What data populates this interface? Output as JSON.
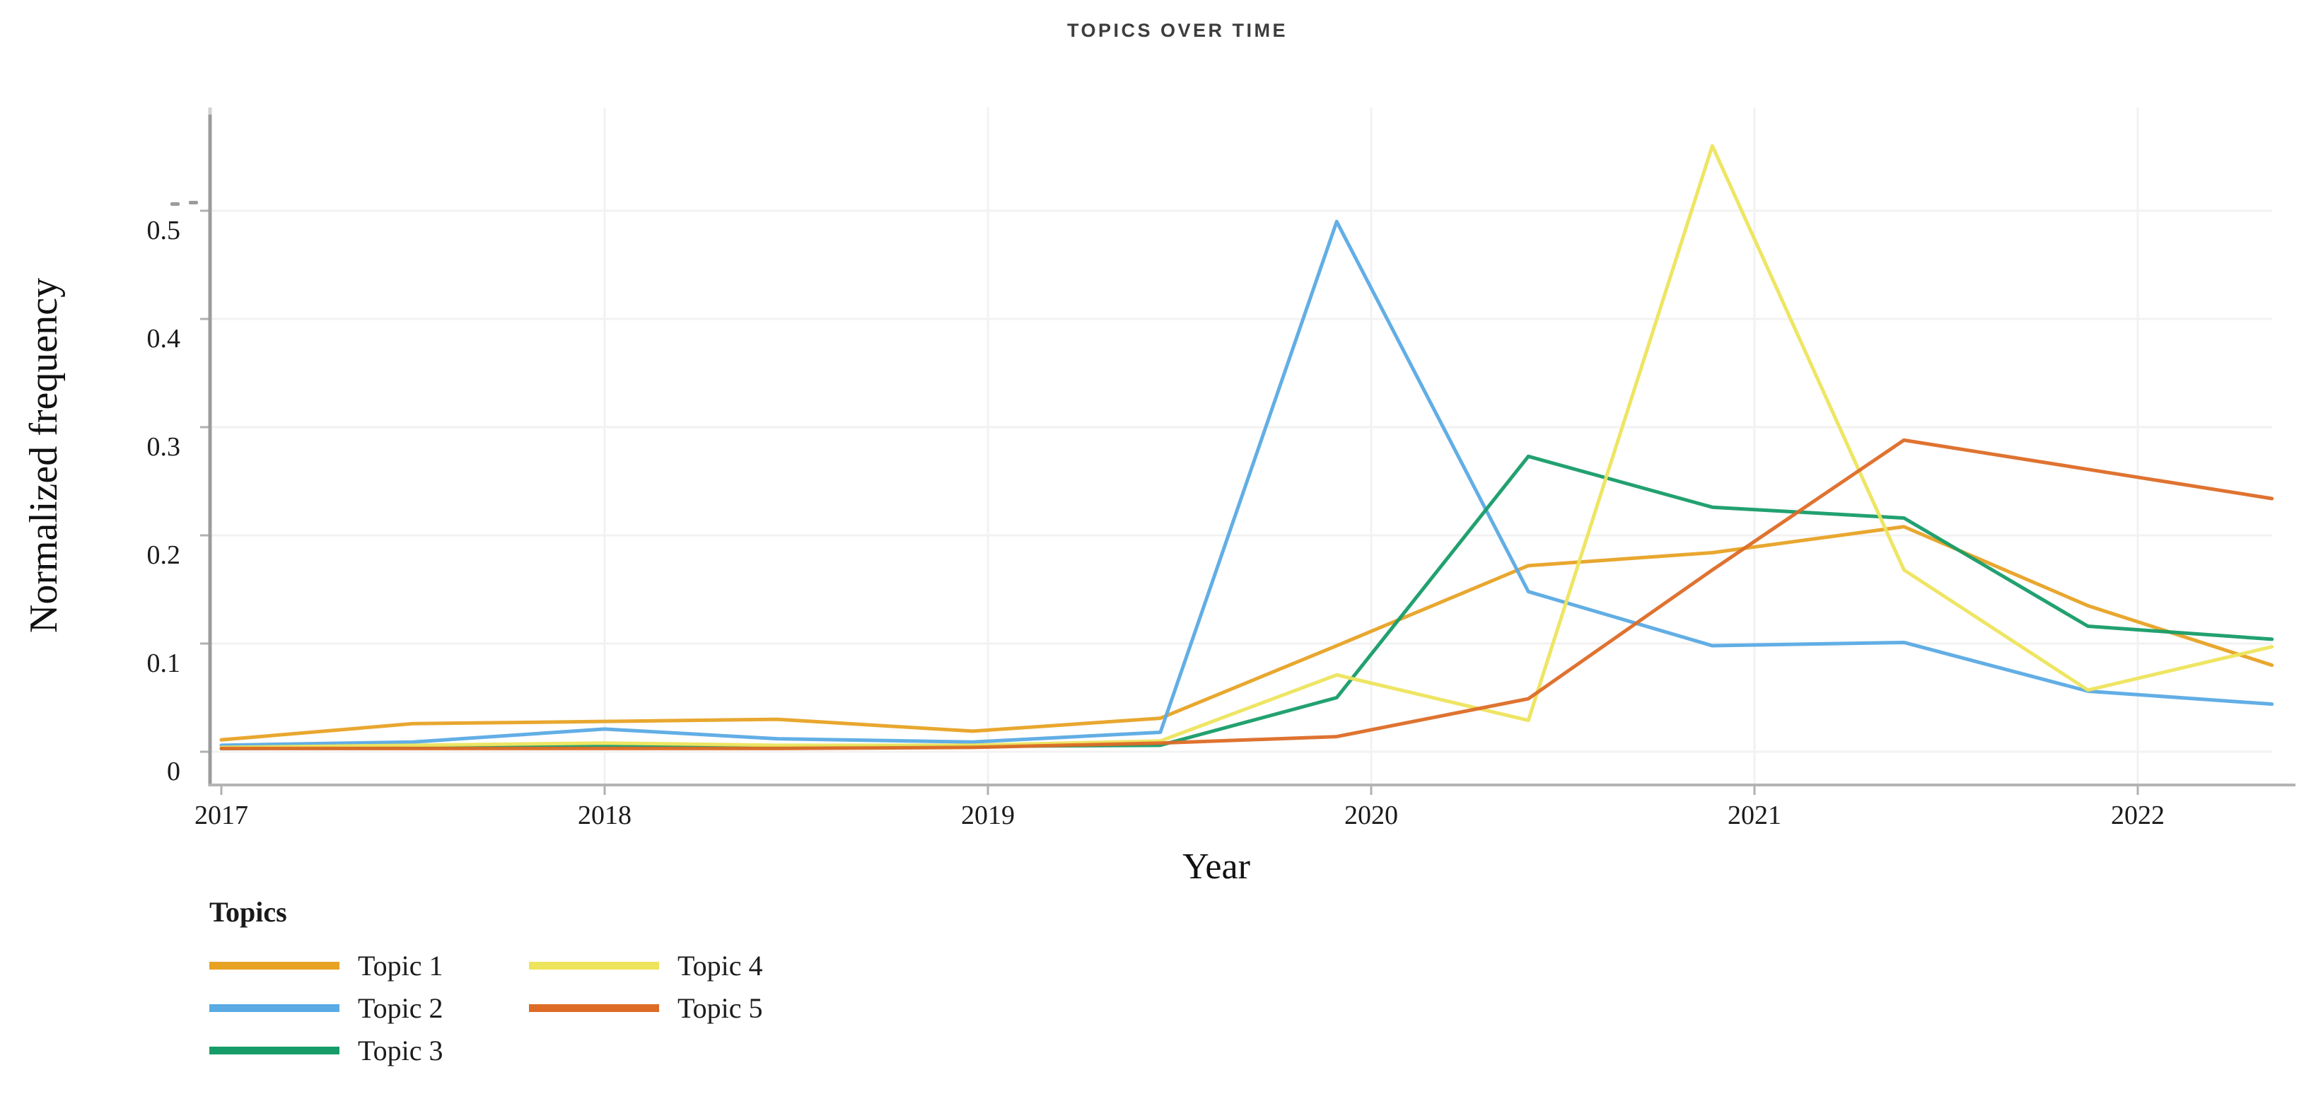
{
  "title": {
    "text": "TOPICS OVER TIME"
  },
  "y_axis": {
    "label": "Normalized frequency",
    "tick_labels": [
      "0",
      "0.1",
      "0.2",
      "0.3",
      "0.4",
      "0.5"
    ]
  },
  "x_axis": {
    "label": "Year",
    "tick_labels": [
      "2017",
      "2018",
      "2019",
      "2020",
      "2021",
      "2022"
    ]
  },
  "legend": {
    "title": "Topics",
    "items": [
      {
        "label": "Topic 1",
        "color": "#E7A224"
      },
      {
        "label": "Topic 4",
        "color": "#EDE45C"
      },
      {
        "label": "Topic 2",
        "color": "#5AAAE4"
      },
      {
        "label": "Topic 5",
        "color": "#DD6B26"
      },
      {
        "label": "Topic 3",
        "color": "#169C68"
      }
    ]
  },
  "colors": {
    "axis_line": "#9c9c9c",
    "baseline": "#b4b4b4",
    "gridline": "#f2f2f2",
    "tick_mark": "#b0b0b0",
    "title_text": "#3d3d3d"
  },
  "chart_data": {
    "type": "line",
    "title": "TOPICS OVER TIME",
    "xlabel": "Year",
    "ylabel": "Normalized frequency",
    "x": [
      2017.0,
      2017.5,
      2018.0,
      2018.45,
      2018.96,
      2019.45,
      2019.91,
      2020.41,
      2020.89,
      2021.39,
      2021.87,
      2022.35
    ],
    "series": [
      {
        "name": "Topic 1",
        "color": "#E7A224",
        "values": [
          0.011,
          0.026,
          0.028,
          0.03,
          0.019,
          0.031,
          0.098,
          0.172,
          0.184,
          0.208,
          0.135,
          0.08
        ]
      },
      {
        "name": "Topic 2",
        "color": "#5AAAE4",
        "values": [
          0.006,
          0.009,
          0.021,
          0.012,
          0.009,
          0.018,
          0.49,
          0.148,
          0.098,
          0.101,
          0.056,
          0.044
        ]
      },
      {
        "name": "Topic 3",
        "color": "#169C68",
        "values": [
          0.003,
          0.004,
          0.005,
          0.004,
          0.005,
          0.006,
          0.05,
          0.273,
          0.226,
          0.216,
          0.116,
          0.104
        ]
      },
      {
        "name": "Topic 4",
        "color": "#EDE45C",
        "values": [
          0.004,
          0.006,
          0.008,
          0.006,
          0.006,
          0.01,
          0.071,
          0.029,
          0.56,
          0.168,
          0.057,
          0.097
        ]
      },
      {
        "name": "Topic 5",
        "color": "#DD6B26",
        "values": [
          0.003,
          0.003,
          0.003,
          0.003,
          0.004,
          0.008,
          0.014,
          0.049,
          0.168,
          0.288,
          0.261,
          0.234
        ]
      }
    ],
    "y_ticks": [
      0,
      0.1,
      0.2,
      0.3,
      0.4,
      0.5
    ],
    "x_ticks": [
      2017,
      2018,
      2019,
      2020,
      2021,
      2022
    ],
    "ylim": [
      0,
      0.6
    ],
    "xlim": [
      2017.0,
      2022.35
    ],
    "grid": true,
    "legend_position": "bottom-left"
  }
}
